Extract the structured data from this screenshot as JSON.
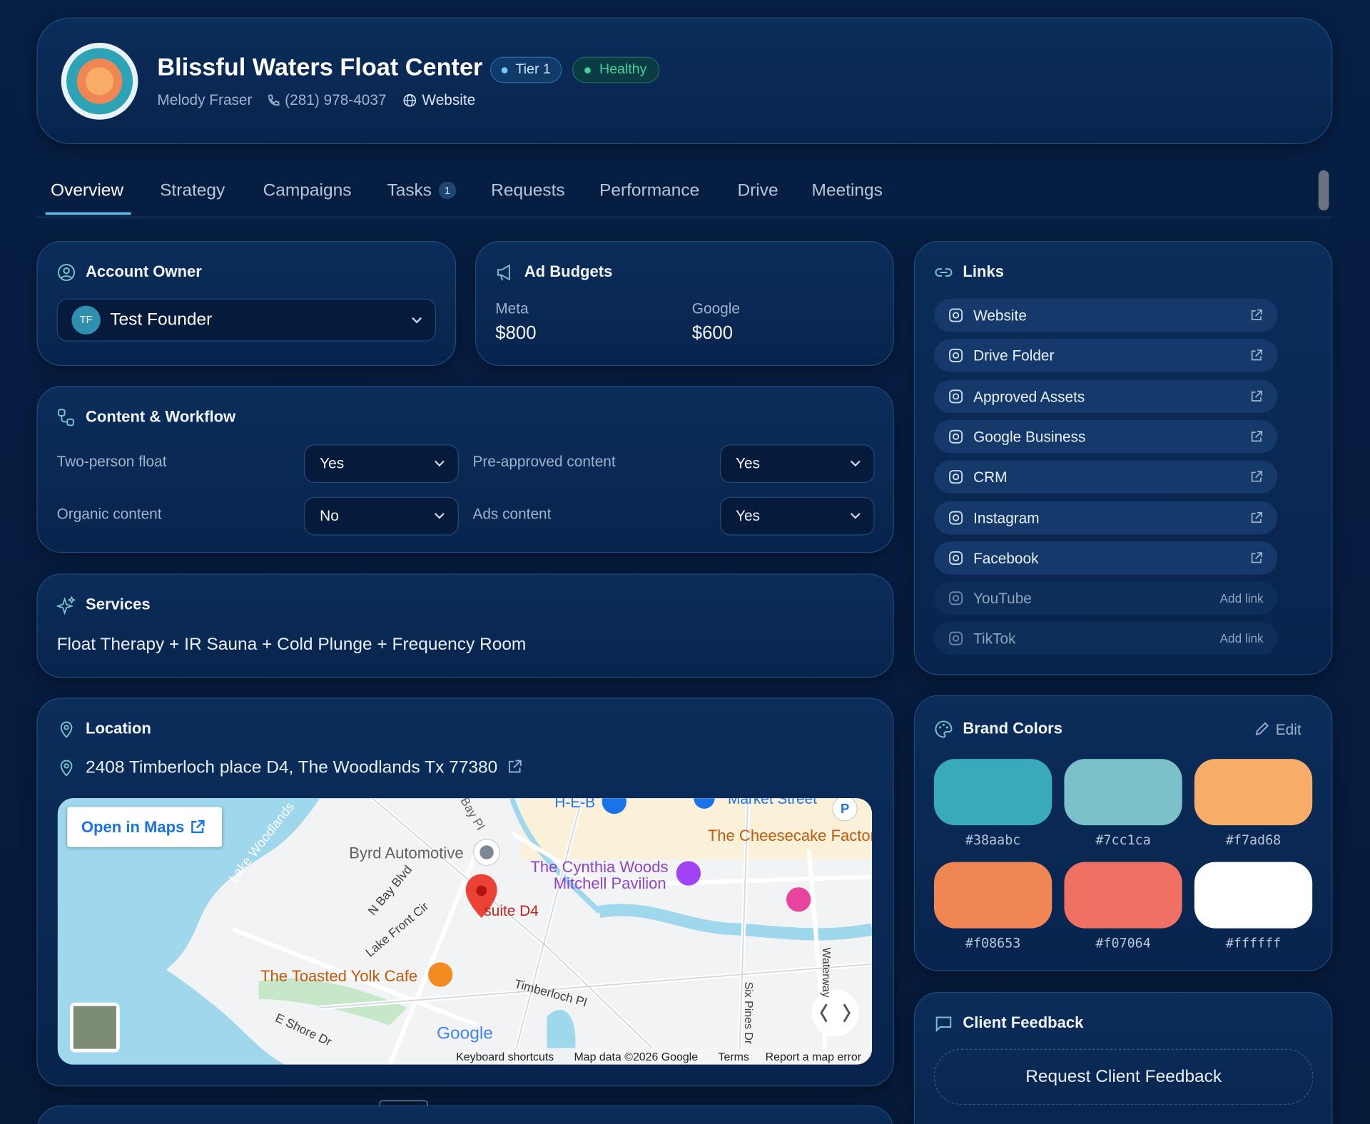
{
  "header": {
    "name": "Blissful Waters Float Center",
    "tier": "Tier 1",
    "status": "Healthy",
    "contact": "Melody Fraser",
    "phone": "(281) 978-4037",
    "website": "Website"
  },
  "tabs": [
    {
      "label": "Overview"
    },
    {
      "label": "Strategy"
    },
    {
      "label": "Campaigns"
    },
    {
      "label": "Tasks",
      "badge": "1"
    },
    {
      "label": "Requests"
    },
    {
      "label": "Performance"
    },
    {
      "label": "Drive"
    },
    {
      "label": "Meetings"
    }
  ],
  "account_owner": {
    "title": "Account Owner",
    "initials": "TF",
    "name": "Test Founder"
  },
  "ad_budgets": {
    "title": "Ad Budgets",
    "items": [
      {
        "label": "Meta",
        "value": "$800"
      },
      {
        "label": "Google",
        "value": "$600"
      }
    ]
  },
  "content_workflow": {
    "title": "Content & Workflow",
    "fields": [
      {
        "label": "Two-person float",
        "value": "Yes"
      },
      {
        "label": "Pre-approved content",
        "value": "Yes"
      },
      {
        "label": "Organic content",
        "value": "No"
      },
      {
        "label": "Ads content",
        "value": "Yes"
      }
    ]
  },
  "services": {
    "title": "Services",
    "text": "Float Therapy + IR Sauna + Cold Plunge + Frequency Room"
  },
  "location": {
    "title": "Location",
    "address": "2408 Timberloch place D4, The Woodlands Tx 77380",
    "map": {
      "open_button": "Open in Maps",
      "labels": [
        "Lake Woodlands",
        "Bay Pl",
        "H-E-B",
        "Market Street",
        "The Cheesecake Factory",
        "Byrd Automotive",
        "The Cynthia Woods",
        "Mitchell Pavilion",
        "N Bay Blvd",
        "Lake Front Cir",
        "suite D4",
        "The Toasted Yolk Cafe",
        "Timberloch Pl",
        "E Shore Dr",
        "Six Pines Dr",
        "Waterway",
        "Google"
      ],
      "footer": [
        "Keyboard shortcuts",
        "Map data ©2026 Google",
        "Terms",
        "Report a map error"
      ]
    }
  },
  "links": {
    "title": "Links",
    "items": [
      {
        "label": "Website"
      },
      {
        "label": "Drive Folder"
      },
      {
        "label": "Approved Assets"
      },
      {
        "label": "Google Business"
      },
      {
        "label": "CRM"
      },
      {
        "label": "Instagram"
      },
      {
        "label": "Facebook"
      },
      {
        "label": "YouTube",
        "action": "Add link"
      },
      {
        "label": "TikTok",
        "action": "Add link"
      }
    ]
  },
  "brand_colors": {
    "title": "Brand Colors",
    "edit": "Edit",
    "colors": [
      "#38aabc",
      "#7cc1ca",
      "#f7ad68",
      "#f08653",
      "#f07064",
      "#ffffff"
    ]
  },
  "client_feedback": {
    "title": "Client Feedback",
    "button": "Request Client Feedback"
  }
}
